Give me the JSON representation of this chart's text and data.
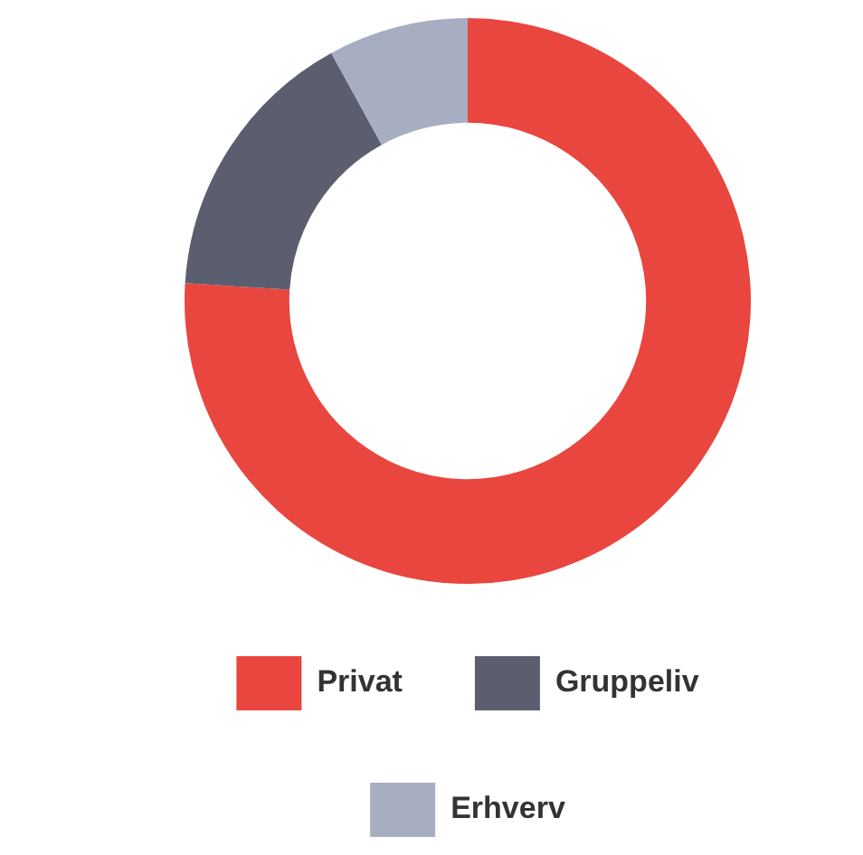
{
  "chart_data": {
    "type": "donut",
    "categories": [
      "Privat",
      "Gruppeliv",
      "Erhverv"
    ],
    "values": [
      76,
      16,
      8
    ],
    "colors": [
      "#e8463f",
      "#5b5e6f",
      "#a8aec1"
    ],
    "legend": "bottom"
  }
}
